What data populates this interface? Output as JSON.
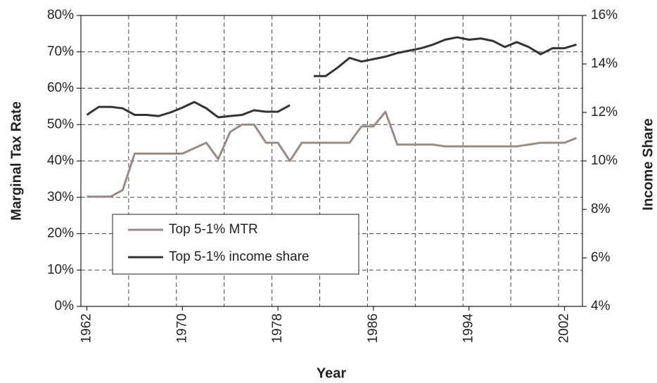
{
  "chart_data": {
    "type": "line",
    "x_label": "Year",
    "y_label": "Marginal Tax Rate",
    "y2_label": "Income Share",
    "categories": [
      1962,
      null,
      null,
      null,
      null,
      null,
      null,
      null,
      1970,
      null,
      null,
      null,
      null,
      null,
      null,
      null,
      1978,
      null,
      null,
      null,
      null,
      null,
      null,
      null,
      1986,
      null,
      null,
      null,
      null,
      null,
      null,
      null,
      1994,
      null,
      null,
      null,
      null,
      null,
      null,
      null,
      2002,
      null
    ],
    "series": [
      {
        "name": "Top 5-1% MTR",
        "color": "#9a8a84",
        "values": [
          30.2,
          30.2,
          30.2,
          32,
          42,
          42,
          42,
          42,
          42,
          43.5,
          45,
          40.5,
          48,
          50,
          50,
          45,
          45,
          40,
          45,
          45,
          45,
          45,
          45,
          49.5,
          49.5,
          53.5,
          44.5,
          44.5,
          44.5,
          44.5,
          44,
          44,
          44,
          44,
          44,
          44,
          44,
          44.5,
          45,
          45,
          45,
          46.3
        ]
      },
      {
        "name": "Top 5-1% income share",
        "color": "#333333",
        "axis": "y2",
        "values": [
          11.9,
          12.23,
          12.23,
          12.17,
          11.9,
          11.9,
          11.85,
          12.0,
          12.2,
          12.43,
          12.17,
          11.8,
          11.85,
          11.9,
          12.09,
          12.03,
          12.03,
          12.3,
          null,
          13.5,
          13.5,
          13.85,
          14.25,
          14.1,
          14.2,
          14.3,
          14.45,
          14.55,
          14.65,
          14.8,
          15.0,
          15.1,
          15.0,
          15.05,
          14.95,
          14.7,
          14.9,
          14.7,
          14.4,
          14.65,
          14.65,
          14.8
        ]
      }
    ],
    "ylim": [
      0,
      80
    ],
    "yticks": [
      {
        "value": 0,
        "label": "0%"
      },
      {
        "value": 10,
        "label": "10%"
      },
      {
        "value": 20,
        "label": "20%"
      },
      {
        "value": 30,
        "label": "30%"
      },
      {
        "value": 40,
        "label": "40%"
      },
      {
        "value": 50,
        "label": "50%"
      },
      {
        "value": 60,
        "label": "60%"
      },
      {
        "value": 70,
        "label": "70%"
      },
      {
        "value": 80,
        "label": "80%"
      }
    ],
    "y2lim": [
      4,
      16
    ],
    "y2ticks": [
      {
        "value": 4,
        "label": "4%"
      },
      {
        "value": 6,
        "label": "6%"
      },
      {
        "value": 8,
        "label": "8%"
      },
      {
        "value": 10,
        "label": "10%"
      },
      {
        "value": 12,
        "label": "12%"
      },
      {
        "value": 14,
        "label": "14%"
      },
      {
        "value": 16,
        "label": "16%"
      }
    ],
    "grid": true,
    "legend": "lower left"
  }
}
